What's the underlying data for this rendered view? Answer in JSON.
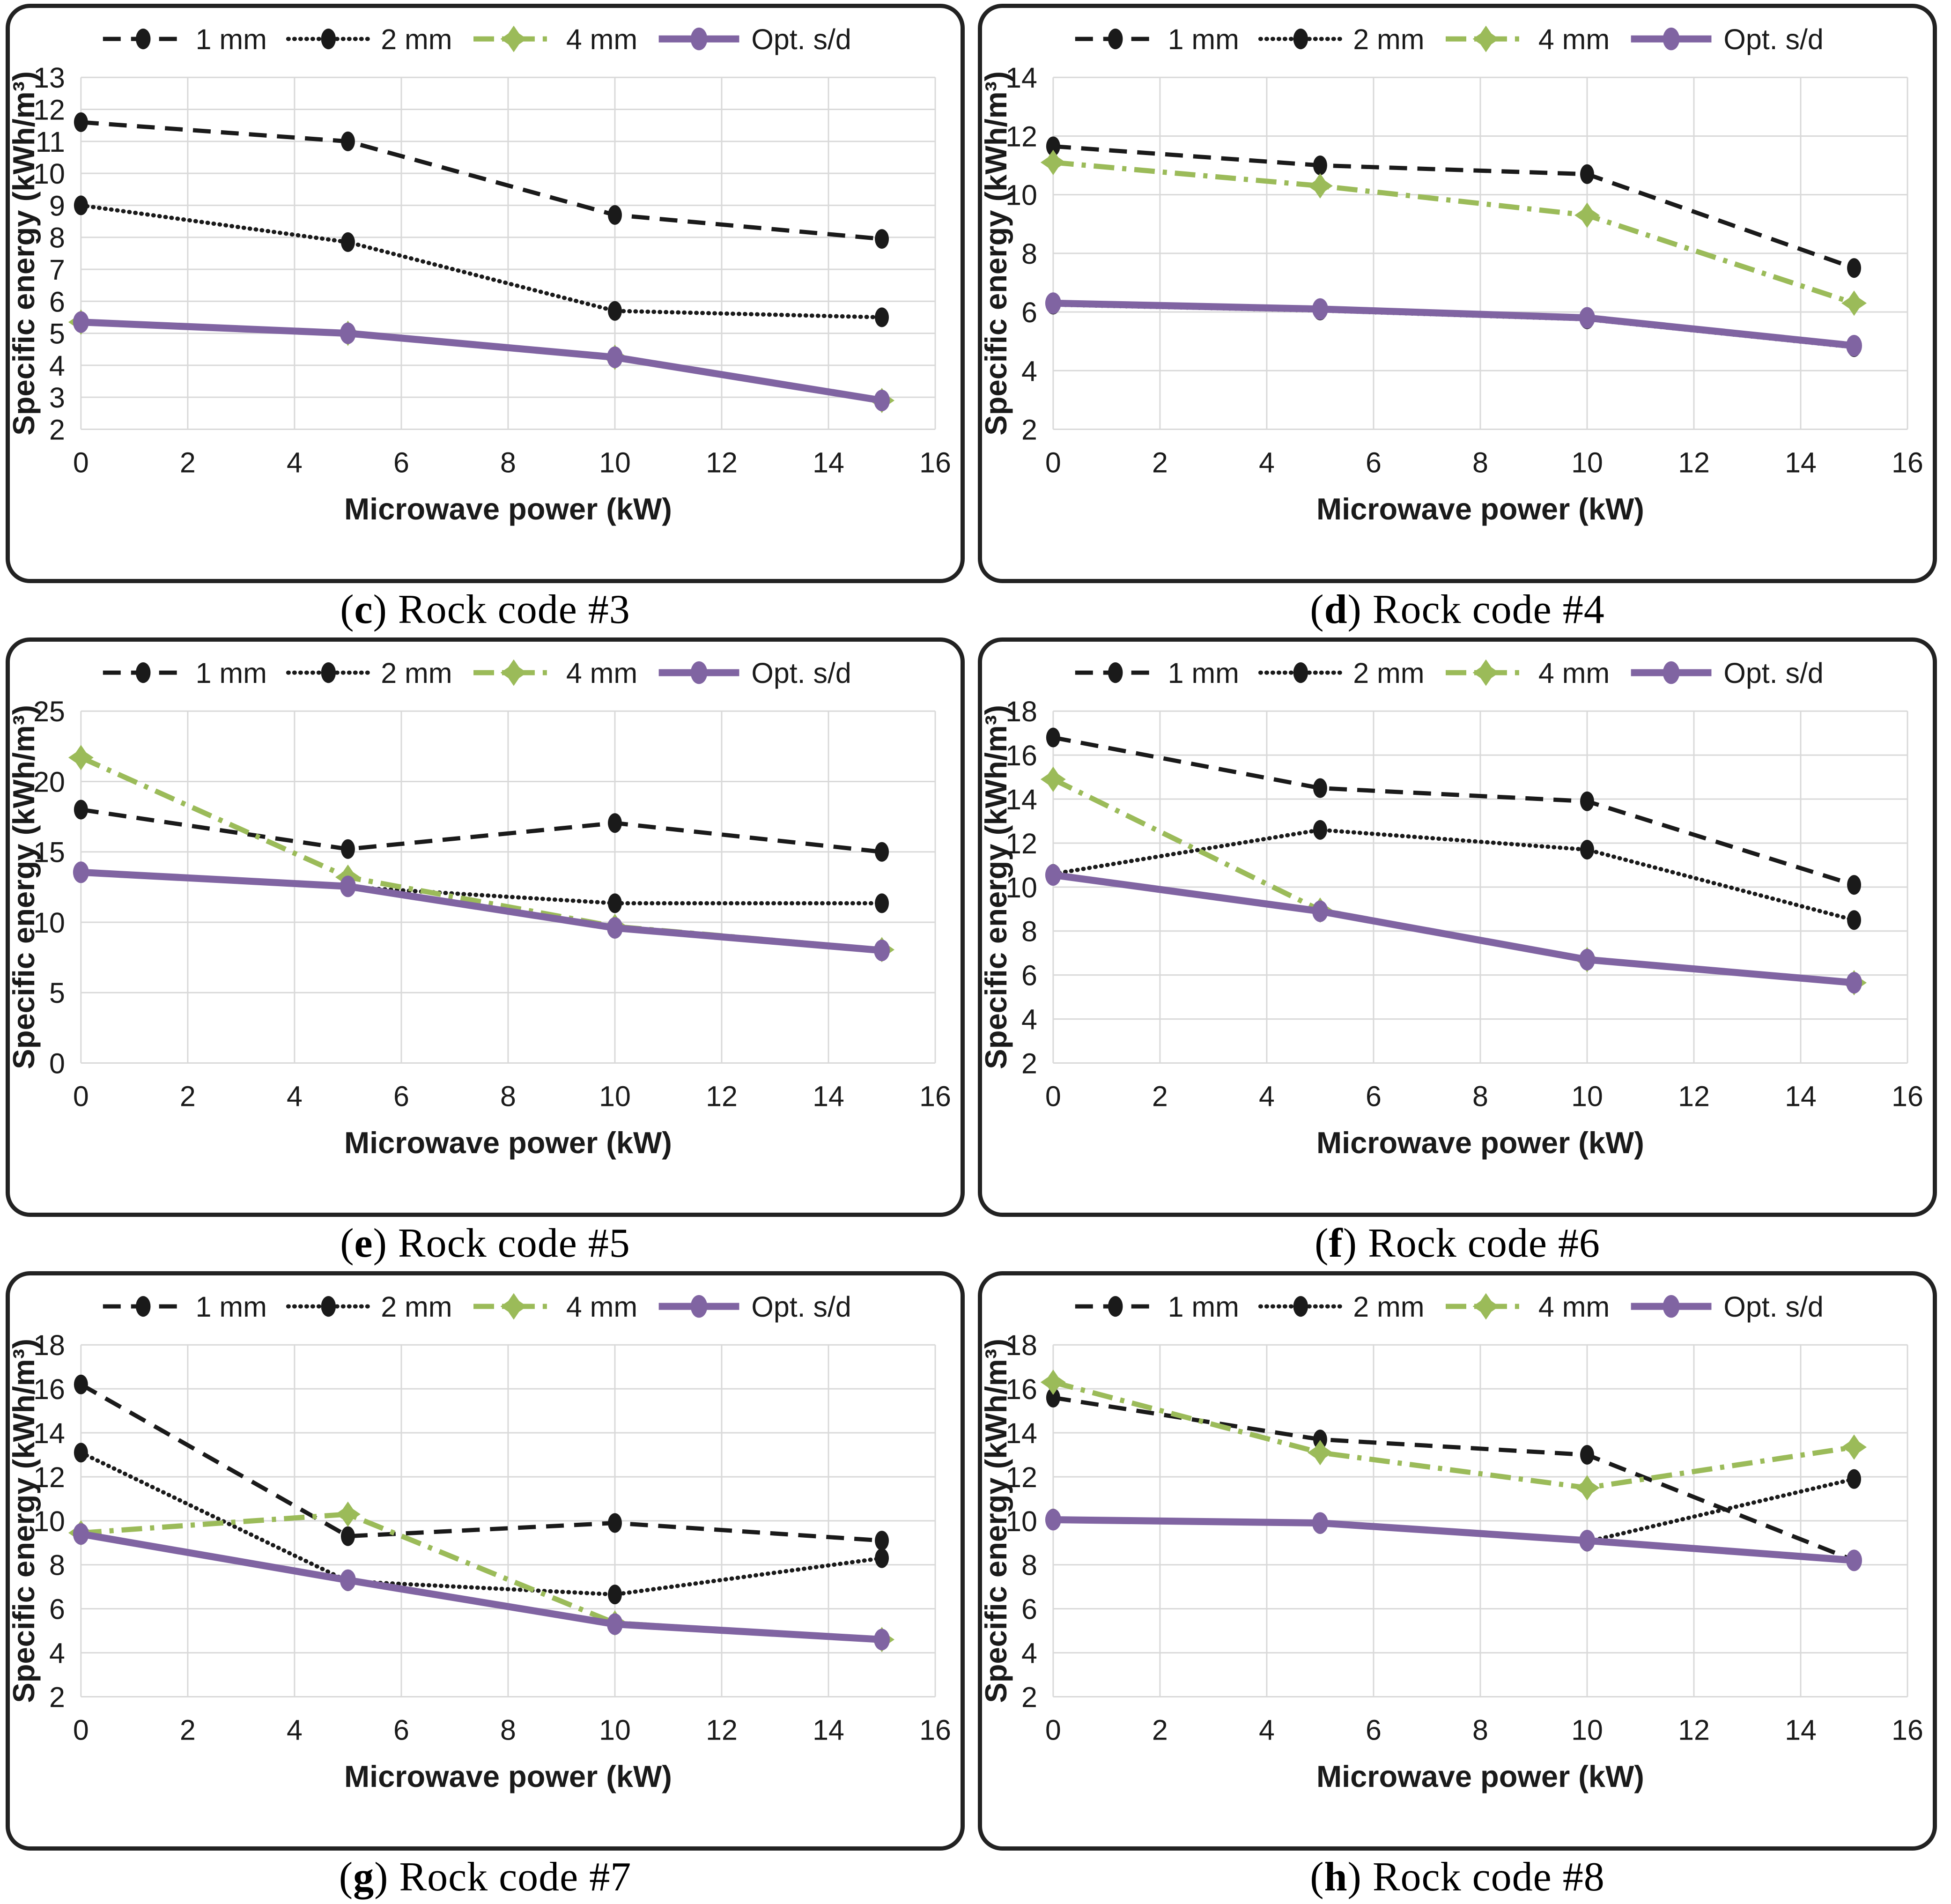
{
  "figure": {
    "background": "#ffffff",
    "panel_border_color": "#222222",
    "gridline_color": "#d9d9d9"
  },
  "axes": {
    "xlabel": "Microwave power (kW)",
    "ylabel": "Specific energy (kWh/m³)",
    "xlim": [
      0,
      16
    ],
    "x_ticks": [
      0,
      2,
      4,
      6,
      8,
      10,
      12,
      14,
      16
    ],
    "grid": "both"
  },
  "chart_data": {
    "type": "line",
    "x_points": [
      0,
      5,
      10,
      15
    ],
    "legend_position": "top-center",
    "series_defs": [
      {
        "name": "1 mm",
        "color": "#1a1a1a",
        "dash": "dashed",
        "marker": "ellipse"
      },
      {
        "name": "2 mm",
        "color": "#1a1a1a",
        "dash": "dotted",
        "marker": "ellipse"
      },
      {
        "name": "4 mm",
        "color": "#9bbb59",
        "dash": "dashdot",
        "marker": "star"
      },
      {
        "name": "Opt. s/d",
        "color": "#8064a2",
        "dash": "solid",
        "marker": "ellipse"
      }
    ],
    "charts": [
      {
        "id": "c",
        "caption_letter": "c",
        "caption_label": "Rock code #3",
        "ylim": [
          2,
          13
        ],
        "y_step": 1,
        "values": {
          "1 mm": [
            11.6,
            11.0,
            8.7,
            7.95
          ],
          "2 mm": [
            9.0,
            7.85,
            5.7,
            5.5
          ],
          "4 mm": [
            5.35,
            5.0,
            4.25,
            2.9
          ],
          "Opt. s/d": [
            5.35,
            5.0,
            4.25,
            2.9
          ]
        }
      },
      {
        "id": "d",
        "caption_letter": "d",
        "caption_label": "Rock code #4",
        "ylim": [
          2,
          14
        ],
        "y_step": 2,
        "values": {
          "1 mm": [
            11.65,
            11.0,
            10.7,
            7.5
          ],
          "2 mm": [
            6.25,
            6.05,
            5.75,
            4.8
          ],
          "4 mm": [
            11.1,
            10.3,
            9.3,
            6.3
          ],
          "Opt. s/d": [
            6.3,
            6.1,
            5.8,
            4.85
          ]
        }
      },
      {
        "id": "e",
        "caption_letter": "e",
        "caption_label": "Rock code #5",
        "ylim": [
          0,
          25
        ],
        "y_step": 5,
        "values": {
          "1 mm": [
            18.0,
            15.2,
            17.05,
            15.0
          ],
          "2 mm": [
            13.5,
            12.5,
            11.35,
            11.35
          ],
          "4 mm": [
            21.7,
            13.2,
            9.7,
            8.05
          ],
          "Opt. s/d": [
            13.55,
            12.55,
            9.6,
            8.0
          ]
        }
      },
      {
        "id": "f",
        "caption_letter": "f",
        "caption_label": "Rock code #6",
        "ylim": [
          2,
          18
        ],
        "y_step": 2,
        "values": {
          "1 mm": [
            16.8,
            14.5,
            13.9,
            10.1
          ],
          "2 mm": [
            10.6,
            12.6,
            11.7,
            8.5
          ],
          "4 mm": [
            14.9,
            8.95,
            6.7,
            5.65
          ],
          "Opt. s/d": [
            10.55,
            8.9,
            6.7,
            5.65
          ]
        }
      },
      {
        "id": "g",
        "caption_letter": "g",
        "caption_label": "Rock code #7",
        "ylim": [
          2,
          18
        ],
        "y_step": 2,
        "values": {
          "1 mm": [
            16.2,
            9.3,
            9.9,
            9.1
          ],
          "2 mm": [
            13.1,
            7.25,
            6.65,
            8.3
          ],
          "4 mm": [
            9.45,
            10.3,
            5.35,
            4.6
          ],
          "Opt. s/d": [
            9.4,
            7.3,
            5.3,
            4.6
          ]
        }
      },
      {
        "id": "h",
        "caption_letter": "h",
        "caption_label": "Rock code #8",
        "ylim": [
          2,
          18
        ],
        "y_step": 2,
        "values": {
          "1 mm": [
            15.6,
            13.7,
            13.0,
            8.2
          ],
          "2 mm": [
            10.1,
            9.85,
            9.05,
            11.9
          ],
          "4 mm": [
            16.3,
            13.1,
            11.5,
            13.35
          ],
          "Opt. s/d": [
            10.05,
            9.9,
            9.1,
            8.2
          ]
        }
      }
    ]
  }
}
